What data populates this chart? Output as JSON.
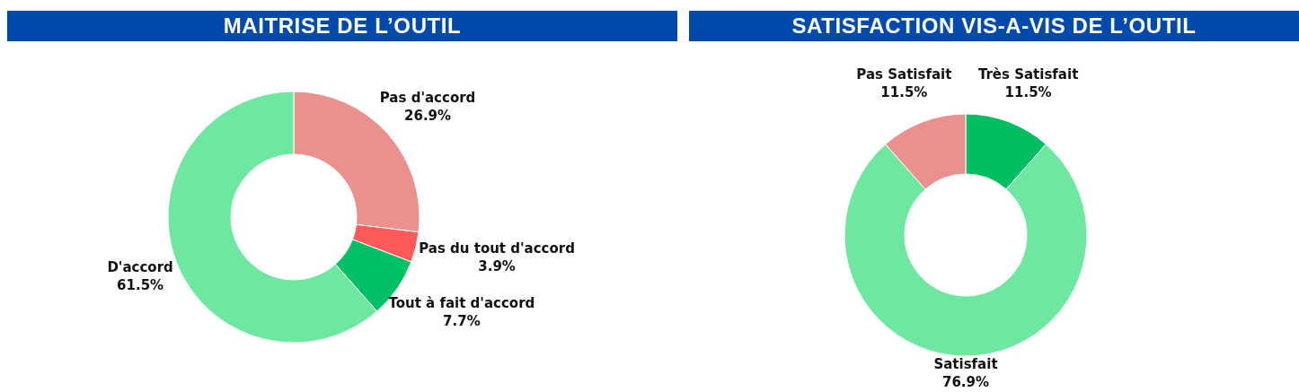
{
  "chart_data": [
    {
      "type": "donut",
      "title": "MAITRISE DE L’OUTIL",
      "categories": [
        "Pas d'accord",
        "Pas du tout d'accord",
        "Tout à fait d'accord",
        "D'accord"
      ],
      "values": [
        26.9,
        3.9,
        7.7,
        61.5
      ],
      "colors": [
        "#ea918f",
        "#ff5a5a",
        "#00c066",
        "#6ee8a0"
      ],
      "value_labels": [
        "26.9%",
        "3.9%",
        "7.7%",
        "61.5%"
      ]
    },
    {
      "type": "donut",
      "title": "SATISFACTION VIS-A-VIS DE L’OUTIL",
      "categories": [
        "Très Satisfait",
        "Satisfait",
        "Pas Satisfait"
      ],
      "values": [
        11.5,
        76.9,
        11.5
      ],
      "colors": [
        "#00bf63",
        "#6ee8a0",
        "#ea918f"
      ],
      "value_labels": [
        "11.5%",
        "76.9%",
        "11.5%"
      ]
    }
  ]
}
